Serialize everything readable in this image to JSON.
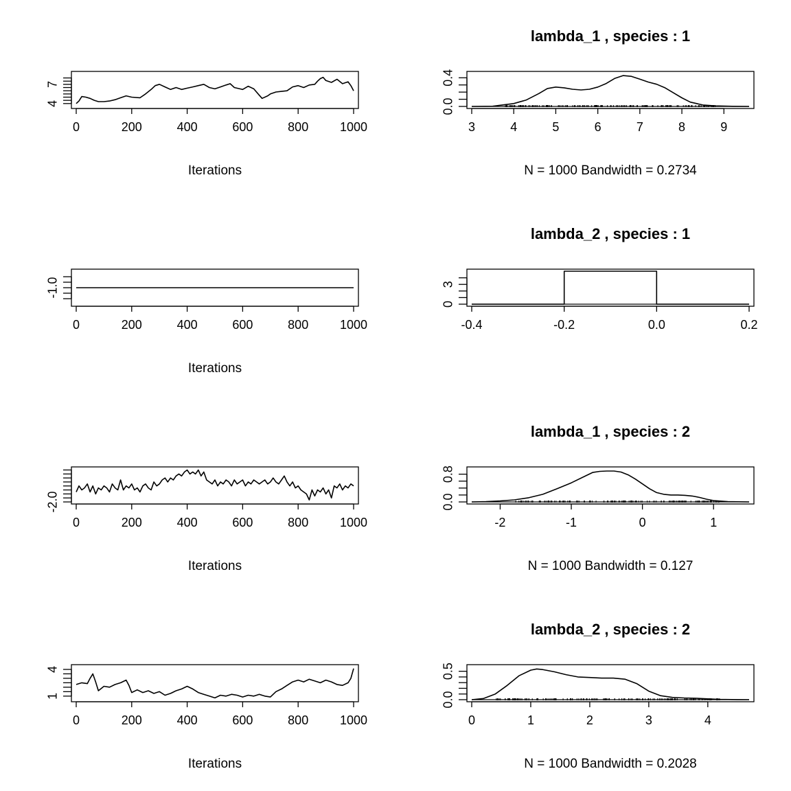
{
  "chart_data": [
    {
      "type": "line",
      "panel": "trace",
      "xlabel": "Iterations",
      "xlim": [
        0,
        1000
      ],
      "ylim": [
        3.55,
        8.7
      ],
      "x_ticks": [
        0,
        200,
        400,
        600,
        800,
        1000
      ],
      "y_tick_labels": [
        4,
        7
      ],
      "y_minor_ticks": [
        4,
        4.5,
        5,
        5.5,
        6,
        6.5,
        7,
        7.5,
        8
      ],
      "series": [
        {
          "x": [
            0,
            10,
            20,
            35,
            50,
            65,
            80,
            100,
            120,
            140,
            160,
            180,
            200,
            230,
            250,
            270,
            285,
            300,
            320,
            340,
            360,
            380,
            400,
            420,
            440,
            460,
            480,
            500,
            520,
            540,
            555,
            570,
            590,
            600,
            620,
            640,
            660,
            670,
            690,
            700,
            720,
            740,
            760,
            780,
            800,
            820,
            840,
            860,
            870,
            880,
            890,
            900,
            920,
            940,
            960,
            980,
            990,
            1000
          ],
          "y": [
            4.0,
            4.4,
            5.1,
            5.0,
            4.8,
            4.5,
            4.3,
            4.3,
            4.4,
            4.6,
            4.9,
            5.2,
            5.0,
            4.9,
            5.5,
            6.2,
            6.8,
            7.0,
            6.6,
            6.2,
            6.5,
            6.2,
            6.4,
            6.6,
            6.8,
            7.0,
            6.5,
            6.3,
            6.6,
            6.9,
            7.1,
            6.5,
            6.3,
            6.2,
            6.7,
            6.3,
            5.3,
            4.8,
            5.2,
            5.5,
            5.8,
            5.9,
            6.0,
            6.6,
            6.8,
            6.5,
            6.9,
            7.0,
            7.5,
            7.9,
            8.1,
            7.6,
            7.3,
            7.8,
            7.1,
            7.4,
            6.8,
            6.0
          ]
        }
      ]
    },
    {
      "type": "line",
      "panel": "density",
      "title": "lambda_1 , species :  1",
      "xlabel": "N = 1000   Bandwidth = 0.2734",
      "xlim": [
        3.0,
        9.6
      ],
      "ylim": [
        0,
        0.46
      ],
      "x_ticks": [
        3,
        4,
        5,
        6,
        7,
        8,
        9
      ],
      "y_tick_labels": [
        "0.0",
        "0.4"
      ],
      "y_minor_ticks": [
        0,
        0.1,
        0.2,
        0.3,
        0.4
      ],
      "rug_range": [
        3.8,
        8.8
      ],
      "series": [
        {
          "x": [
            3.0,
            3.5,
            4.0,
            4.3,
            4.6,
            4.8,
            5.0,
            5.2,
            5.4,
            5.6,
            5.8,
            6.0,
            6.2,
            6.4,
            6.6,
            6.8,
            7.0,
            7.2,
            7.4,
            7.6,
            7.8,
            8.0,
            8.2,
            8.5,
            8.8,
            9.2,
            9.6
          ],
          "y": [
            0.0,
            0.003,
            0.04,
            0.09,
            0.18,
            0.25,
            0.27,
            0.26,
            0.24,
            0.23,
            0.24,
            0.27,
            0.32,
            0.39,
            0.43,
            0.42,
            0.38,
            0.34,
            0.31,
            0.26,
            0.19,
            0.12,
            0.06,
            0.02,
            0.008,
            0.002,
            0.0
          ]
        }
      ]
    },
    {
      "type": "line",
      "panel": "trace",
      "xlabel": "Iterations",
      "xlim": [
        0,
        1000
      ],
      "ylim": [
        -1.6,
        -0.4
      ],
      "x_ticks": [
        0,
        200,
        400,
        600,
        800,
        1000
      ],
      "y_tick_labels": [
        "-1.0"
      ],
      "y_minor_ticks": [
        -1.4,
        -1.2,
        -1.0,
        -0.8,
        -0.6
      ],
      "series": [
        {
          "x": [
            0,
            1000
          ],
          "y": [
            -1.0,
            -1.0
          ]
        }
      ]
    },
    {
      "type": "line",
      "panel": "density",
      "title": "lambda_2 , species :  1",
      "xlabel": "",
      "xlim": [
        -0.4,
        0.2
      ],
      "ylim": [
        0,
        5.0
      ],
      "x_ticks": [
        -0.4,
        -0.2,
        0.0,
        0.2
      ],
      "x_tick_labels": [
        "-0.4",
        "-0.2",
        "0.0",
        "0.2"
      ],
      "y_tick_labels": [
        0,
        3
      ],
      "y_minor_ticks": [
        0,
        1,
        2,
        3,
        4
      ],
      "series": [
        {
          "x": [
            -0.4,
            -0.2,
            -0.2,
            0.0,
            0.0,
            0.2
          ],
          "y": [
            0,
            0,
            5.0,
            5.0,
            0,
            0
          ]
        }
      ]
    },
    {
      "type": "line",
      "panel": "trace",
      "xlabel": "Iterations",
      "xlim": [
        0,
        1000
      ],
      "ylim": [
        -2.0,
        -0.35
      ],
      "x_ticks": [
        0,
        200,
        400,
        600,
        800,
        1000
      ],
      "y_tick_labels": [
        "-2.0"
      ],
      "y_minor_ticks": [
        -2.0,
        -1.8,
        -1.6,
        -1.4,
        -1.2,
        -1.0,
        -0.8,
        -0.6,
        -0.4
      ],
      "series": [
        {
          "x": [
            0,
            10,
            20,
            30,
            40,
            50,
            60,
            70,
            80,
            90,
            100,
            110,
            120,
            130,
            140,
            150,
            160,
            170,
            180,
            190,
            200,
            210,
            220,
            230,
            240,
            250,
            260,
            270,
            280,
            290,
            300,
            310,
            320,
            330,
            340,
            350,
            360,
            370,
            380,
            390,
            400,
            410,
            420,
            430,
            440,
            450,
            460,
            470,
            480,
            490,
            500,
            510,
            520,
            530,
            540,
            550,
            560,
            570,
            580,
            590,
            600,
            610,
            620,
            630,
            640,
            650,
            660,
            670,
            680,
            690,
            700,
            710,
            720,
            730,
            740,
            750,
            760,
            770,
            780,
            790,
            800,
            810,
            820,
            830,
            840,
            850,
            860,
            870,
            880,
            890,
            900,
            910,
            920,
            930,
            940,
            950,
            960,
            970,
            980,
            990,
            1000
          ],
          "y": [
            -1.5,
            -1.2,
            -1.4,
            -1.3,
            -1.1,
            -1.5,
            -1.2,
            -1.6,
            -1.3,
            -1.4,
            -1.2,
            -1.3,
            -1.5,
            -1.1,
            -1.3,
            -1.4,
            -0.9,
            -1.4,
            -1.2,
            -1.3,
            -1.1,
            -1.4,
            -1.3,
            -1.5,
            -1.2,
            -1.1,
            -1.3,
            -1.4,
            -1.0,
            -1.2,
            -1.1,
            -0.9,
            -0.8,
            -1.0,
            -0.8,
            -0.9,
            -0.7,
            -0.6,
            -0.7,
            -0.5,
            -0.4,
            -0.6,
            -0.5,
            -0.6,
            -0.4,
            -0.7,
            -0.5,
            -0.9,
            -1.0,
            -1.1,
            -0.9,
            -1.2,
            -1.0,
            -1.1,
            -0.9,
            -1.0,
            -1.2,
            -0.9,
            -1.1,
            -1.0,
            -0.9,
            -1.2,
            -1.0,
            -1.1,
            -0.9,
            -1.0,
            -1.1,
            -1.0,
            -0.9,
            -1.1,
            -1.0,
            -0.8,
            -1.0,
            -1.1,
            -0.9,
            -0.7,
            -1.0,
            -1.2,
            -1.0,
            -1.3,
            -1.2,
            -1.4,
            -1.5,
            -1.6,
            -1.9,
            -1.4,
            -1.7,
            -1.4,
            -1.5,
            -1.3,
            -1.6,
            -1.4,
            -1.8,
            -1.2,
            -1.3,
            -1.1,
            -1.4,
            -1.2,
            -1.3,
            -1.1,
            -1.2
          ]
        }
      ]
    },
    {
      "type": "line",
      "panel": "density",
      "title": "lambda_1 , species :  2",
      "xlabel": "N = 1000   Bandwidth = 0.127",
      "xlim": [
        -2.4,
        1.5
      ],
      "ylim": [
        0,
        0.95
      ],
      "x_ticks": [
        -2,
        -1,
        0,
        1
      ],
      "y_tick_labels": [
        "0.0",
        "0.8"
      ],
      "y_minor_ticks": [
        0,
        0.2,
        0.4,
        0.6,
        0.8
      ],
      "rug_range": [
        -1.8,
        1.1
      ],
      "series": [
        {
          "x": [
            -2.4,
            -2.2,
            -2.0,
            -1.8,
            -1.6,
            -1.4,
            -1.2,
            -1.0,
            -0.8,
            -0.7,
            -0.6,
            -0.5,
            -0.4,
            -0.3,
            -0.2,
            -0.1,
            0.0,
            0.1,
            0.2,
            0.3,
            0.4,
            0.5,
            0.6,
            0.7,
            0.8,
            0.9,
            1.0,
            1.2,
            1.5
          ],
          "y": [
            0.0,
            0.01,
            0.03,
            0.06,
            0.12,
            0.22,
            0.38,
            0.55,
            0.75,
            0.85,
            0.88,
            0.89,
            0.89,
            0.86,
            0.78,
            0.66,
            0.52,
            0.38,
            0.27,
            0.22,
            0.2,
            0.2,
            0.19,
            0.17,
            0.13,
            0.08,
            0.04,
            0.01,
            0.0
          ]
        }
      ]
    },
    {
      "type": "line",
      "panel": "trace",
      "xlabel": "Iterations",
      "xlim": [
        0,
        1000
      ],
      "ylim": [
        0.6,
        4.3
      ],
      "x_ticks": [
        0,
        200,
        400,
        600,
        800,
        1000
      ],
      "y_tick_labels": [
        1,
        4
      ],
      "y_minor_ticks": [
        1,
        1.5,
        2,
        2.5,
        3,
        3.5,
        4
      ],
      "series": [
        {
          "x": [
            0,
            20,
            40,
            50,
            60,
            70,
            80,
            100,
            120,
            140,
            160,
            180,
            190,
            200,
            220,
            240,
            260,
            280,
            300,
            320,
            340,
            360,
            380,
            400,
            420,
            440,
            460,
            480,
            500,
            520,
            540,
            560,
            580,
            600,
            620,
            640,
            660,
            680,
            700,
            720,
            740,
            760,
            780,
            800,
            820,
            840,
            860,
            880,
            900,
            920,
            940,
            960,
            980,
            990,
            1000
          ],
          "y": [
            2.3,
            2.5,
            2.4,
            3.0,
            3.5,
            2.6,
            1.6,
            2.1,
            2.0,
            2.3,
            2.5,
            2.8,
            2.2,
            1.4,
            1.7,
            1.4,
            1.6,
            1.3,
            1.5,
            1.1,
            1.3,
            1.6,
            1.8,
            2.1,
            1.8,
            1.4,
            1.2,
            1.0,
            0.8,
            1.1,
            1.0,
            1.2,
            1.1,
            0.9,
            1.1,
            1.0,
            1.2,
            1.0,
            0.9,
            1.5,
            1.8,
            2.2,
            2.6,
            2.8,
            2.6,
            2.9,
            2.7,
            2.5,
            2.8,
            2.6,
            2.3,
            2.2,
            2.5,
            3.0,
            4.1
          ]
        }
      ]
    },
    {
      "type": "line",
      "panel": "density",
      "title": "lambda_2 , species :  2",
      "xlabel": "N = 1000   Bandwidth = 0.2028",
      "xlim": [
        0,
        4.7
      ],
      "ylim": [
        0,
        0.58
      ],
      "x_ticks": [
        0,
        1,
        2,
        3,
        4
      ],
      "y_tick_labels": [
        "0.0",
        "0.5"
      ],
      "y_minor_ticks": [
        0,
        0.1,
        0.2,
        0.3,
        0.4,
        0.5
      ],
      "rug_range": [
        0.4,
        4.2
      ],
      "series": [
        {
          "x": [
            0.0,
            0.2,
            0.4,
            0.6,
            0.8,
            1.0,
            1.1,
            1.2,
            1.4,
            1.6,
            1.8,
            2.0,
            2.2,
            2.4,
            2.6,
            2.8,
            3.0,
            3.2,
            3.4,
            3.6,
            3.8,
            4.0,
            4.2,
            4.5,
            4.7
          ],
          "y": [
            0.0,
            0.02,
            0.1,
            0.25,
            0.42,
            0.52,
            0.54,
            0.53,
            0.49,
            0.44,
            0.4,
            0.39,
            0.38,
            0.38,
            0.36,
            0.28,
            0.15,
            0.07,
            0.04,
            0.03,
            0.025,
            0.015,
            0.006,
            0.001,
            0.0
          ]
        }
      ]
    }
  ]
}
